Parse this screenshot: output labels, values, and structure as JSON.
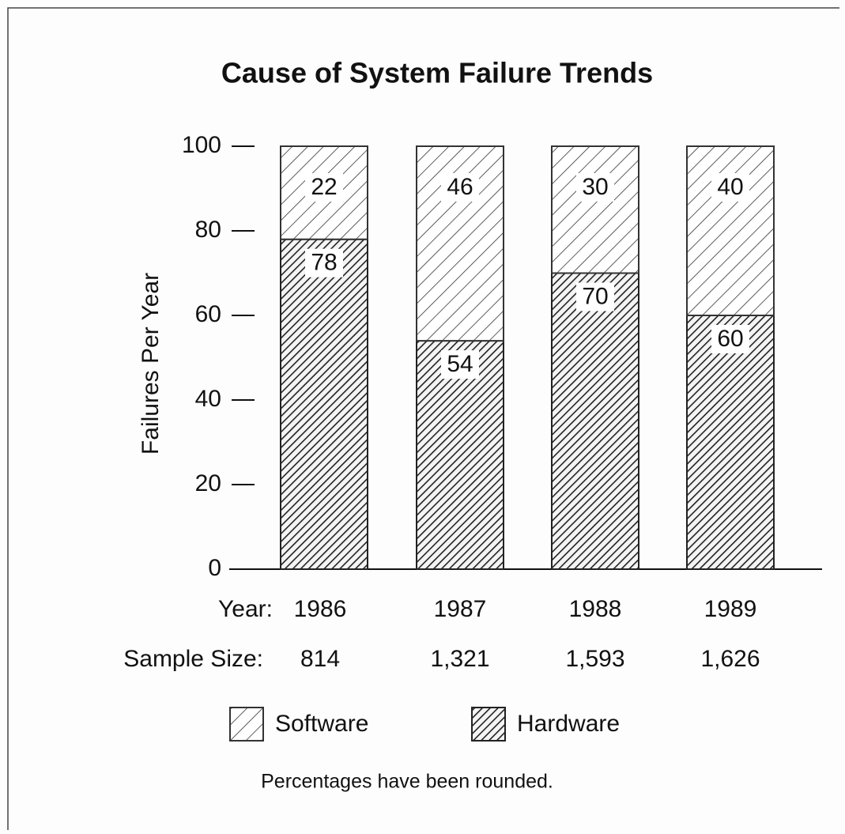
{
  "chart_data": {
    "type": "stacked_bar",
    "title": "Cause of System Failure Trends",
    "ylabel": "Failures Per Year",
    "xlabel": "Year:",
    "categories": [
      "1986",
      "1987",
      "1988",
      "1989"
    ],
    "sample_size_label": "Sample Size:",
    "sample_sizes": [
      "814",
      "1,321",
      "1,593",
      "1,626"
    ],
    "series": [
      {
        "name": "Hardware",
        "color": "#222222",
        "values": [
          78,
          54,
          70,
          60
        ]
      },
      {
        "name": "Software",
        "color": "#333333",
        "values": [
          22,
          46,
          30,
          40
        ]
      }
    ],
    "legend_order": [
      1,
      0
    ],
    "ylim": [
      0,
      100
    ],
    "yticks": [
      0,
      20,
      40,
      60,
      80,
      100
    ],
    "note": "Percentages have been rounded."
  }
}
